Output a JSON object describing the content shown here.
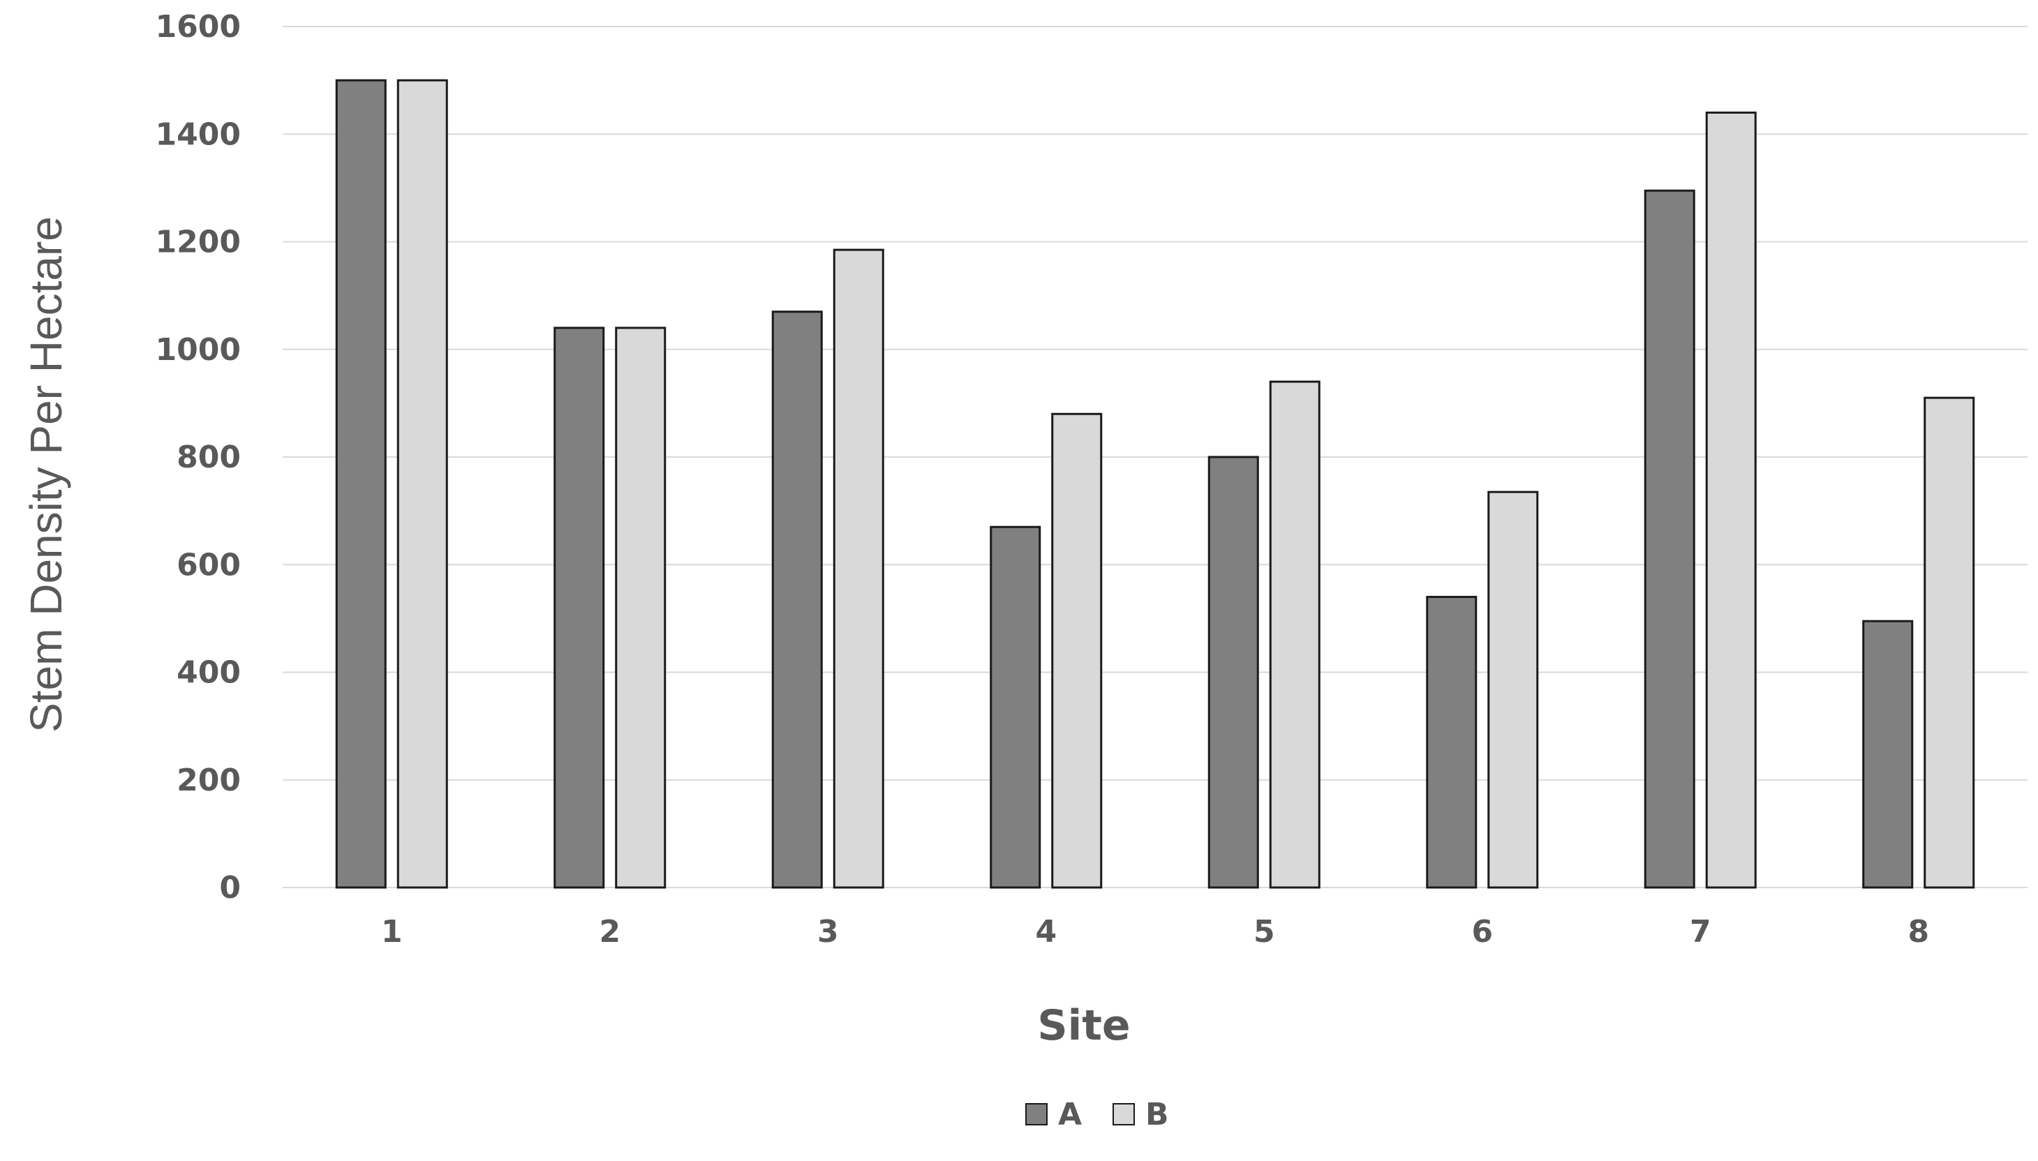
{
  "colors": {
    "series_a": "#808080",
    "series_b": "#d9d9d9",
    "bar_stroke": "#1a1a1a",
    "grid": "#d9d9d9",
    "text": "#595959"
  },
  "chart_data": {
    "type": "bar",
    "title": "",
    "xlabel": "Site",
    "ylabel": "Stem Density Per Hectare",
    "categories": [
      "1",
      "2",
      "3",
      "4",
      "5",
      "6",
      "7",
      "8"
    ],
    "series": [
      {
        "name": "A",
        "values": [
          1500,
          1040,
          1070,
          670,
          800,
          540,
          1295,
          495
        ]
      },
      {
        "name": "B",
        "values": [
          1500,
          1040,
          1185,
          880,
          940,
          735,
          1440,
          910
        ]
      }
    ],
    "ylim": [
      0,
      1600
    ],
    "yticks": [
      "0",
      "200",
      "400",
      "600",
      "800",
      "1000",
      "1200",
      "1400",
      "1600"
    ],
    "grid": true,
    "legend_position": "bottom"
  }
}
